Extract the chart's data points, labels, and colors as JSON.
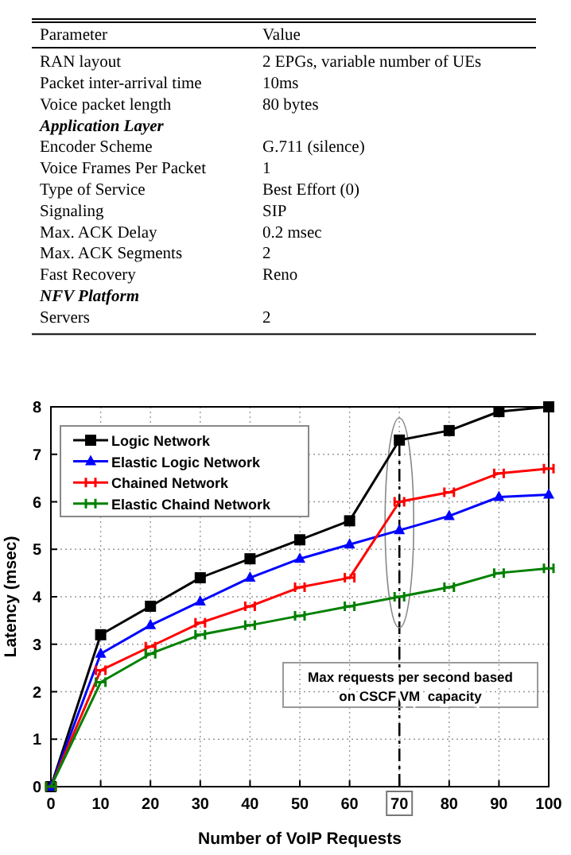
{
  "chart_data": [
    {
      "type": "other",
      "categories": [
        "Parameter",
        "Value"
      ],
      "y_categories": [
        "RAN layout",
        "Packet inter-arrival time",
        "Voice packet length",
        "Application Layer",
        "Encoder Scheme",
        "Voice Frames Per Packet",
        "Type of Service",
        "Signaling",
        "Max. ACK Delay",
        "Max. ACK Segments",
        "Fast Recovery",
        "NFV Platform",
        "Servers"
      ],
      "cell_labels": [
        [
          "2 EPGs, variable number of UEs"
        ],
        [
          "10ms"
        ],
        [
          "80 bytes"
        ],
        [
          null
        ],
        [
          "G.711 (silence)"
        ],
        [
          "1"
        ],
        [
          "Best Effort (0)"
        ],
        [
          "SIP"
        ],
        [
          "0.2 msec"
        ],
        [
          "2"
        ],
        [
          "Reno"
        ],
        [
          null
        ],
        [
          "2"
        ]
      ]
    },
    {
      "type": "line",
      "xlabel": "Number of VoIP Requests",
      "ylabel": "Latency (msec)",
      "x": [
        0,
        10,
        20,
        30,
        40,
        50,
        60,
        70,
        80,
        90,
        100
      ],
      "xlim": [
        0,
        100
      ],
      "xticks": [
        0,
        10,
        20,
        30,
        40,
        50,
        60,
        70,
        80,
        90,
        100
      ],
      "ylim": [
        0,
        8
      ],
      "yticks": [
        0,
        1,
        2,
        3,
        4,
        5,
        6,
        7,
        8
      ],
      "grid": true,
      "legend": "top left",
      "series": [
        {
          "name": "Logic Network",
          "color": "#000000",
          "marker": "square",
          "values": [
            0,
            3.2,
            3.8,
            4.4,
            4.8,
            5.2,
            5.6,
            7.3,
            7.5,
            7.9,
            8.0
          ]
        },
        {
          "name": "Elastic Logic Network",
          "color": "#0000ff",
          "marker": "triangle",
          "values": [
            0,
            2.8,
            3.4,
            3.9,
            4.4,
            4.8,
            5.1,
            5.4,
            5.7,
            6.1,
            6.15
          ]
        },
        {
          "name": "Chained Network",
          "color": "#ff0000",
          "marker": "cross",
          "values": [
            0,
            2.45,
            2.95,
            3.45,
            3.8,
            4.2,
            4.4,
            6.0,
            6.2,
            6.6,
            6.7
          ]
        },
        {
          "name": "Elastic Chaind Network",
          "color": "#008000",
          "marker": "cross",
          "values": [
            0,
            2.2,
            2.8,
            3.2,
            3.4,
            3.6,
            3.8,
            4.0,
            4.2,
            4.5,
            4.6
          ]
        }
      ],
      "ref_lines": [
        {
          "axis": "x",
          "value": 70,
          "color": "#000000",
          "line_style": "dashed"
        }
      ],
      "annotations": [
        {
          "text": "Max requests per second based on CSCF VM  capacity"
        }
      ]
    }
  ]
}
